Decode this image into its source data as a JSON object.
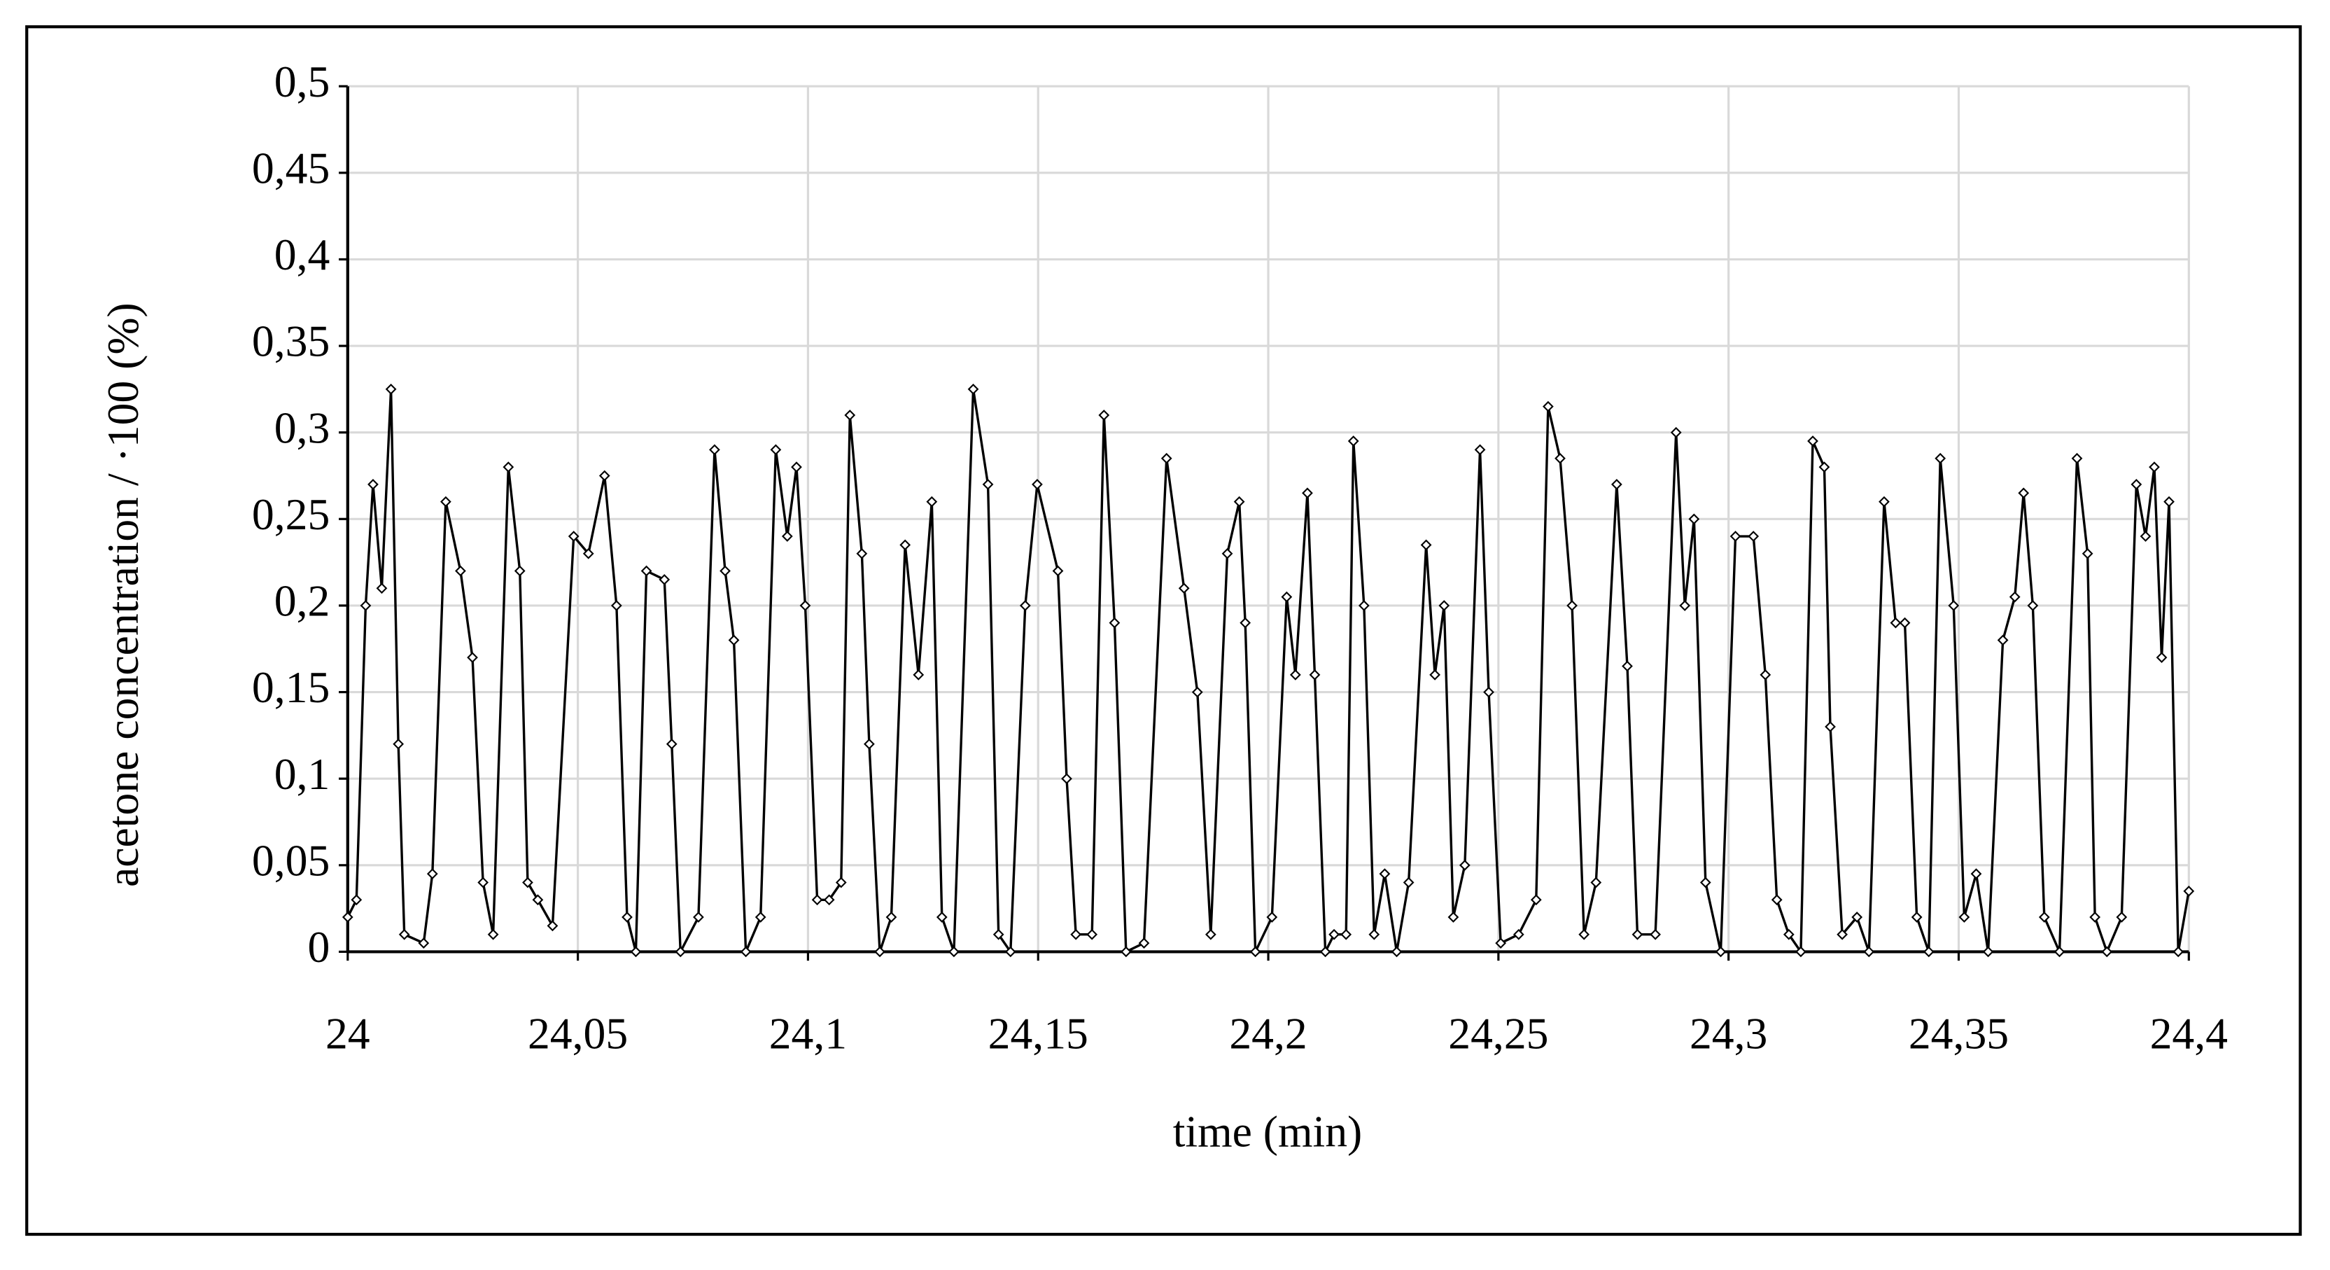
{
  "chart_data": {
    "type": "line",
    "xlabel": "time (min)",
    "ylabel": "acetone concentration / ·100 (%)",
    "xlim": [
      24,
      24.4
    ],
    "ylim": [
      0,
      0.5
    ],
    "xticks": [
      24,
      {
        "value": 24.05,
        "label": "24,05"
      },
      {
        "value": 24.1,
        "label": "24,1"
      },
      {
        "value": 24.15,
        "label": "24,15"
      },
      {
        "value": 24.2,
        "label": "24,2"
      },
      {
        "value": 24.25,
        "label": "24,25"
      },
      {
        "value": 24.3,
        "label": "24,3"
      },
      {
        "value": 24.35,
        "label": "24,35"
      },
      {
        "value": 24.4,
        "label": "24,4"
      }
    ],
    "yticks": [
      0,
      {
        "value": 0.05,
        "label": "0,05"
      },
      {
        "value": 0.1,
        "label": "0,1"
      },
      {
        "value": 0.15,
        "label": "0,15"
      },
      {
        "value": 0.2,
        "label": "0,2"
      },
      {
        "value": 0.25,
        "label": "0,25"
      },
      {
        "value": 0.3,
        "label": "0,3"
      },
      {
        "value": 0.35,
        "label": "0,35"
      },
      {
        "value": 0.4,
        "label": "0,4"
      },
      {
        "value": 0.45,
        "label": "0,45"
      },
      {
        "value": 0.5,
        "label": "0,5"
      }
    ],
    "grid": true,
    "color": "#000000",
    "x": [
      24,
      24.0019,
      24.0039,
      24.0055,
      24.0074,
      24.0094,
      24.011,
      24.0123,
      24.0165,
      24.0184,
      24.0213,
      24.0245,
      24.0271,
      24.0294,
      24.0316,
      24.0349,
      24.0374,
      24.0391,
      24.0413,
      24.0445,
      24.0491,
      24.0523,
      24.0558,
      24.0584,
      24.0607,
      24.0626,
      24.0649,
      24.0688,
      24.0704,
      24.0723,
      24.0762,
      24.0797,
      24.082,
      24.0839,
      24.0865,
      24.0897,
      24.093,
      24.0955,
      24.0975,
      24.0994,
      24.102,
      24.1046,
      24.1072,
      24.1091,
      24.1117,
      24.1133,
      24.1156,
      24.1181,
      24.1211,
      24.124,
      24.1269,
      24.1291,
      24.1317,
      24.1359,
      24.1391,
      24.1414,
      24.144,
      24.1472,
      24.1498,
      24.1543,
      24.1562,
      24.1582,
      24.1617,
      24.1643,
      24.1666,
      24.1691,
      24.173,
      24.1779,
      24.1817,
      24.1846,
      24.1875,
      24.1911,
      24.1937,
      24.195,
      24.1972,
      24.2008,
      24.204,
      24.2059,
      24.2085,
      24.2101,
      24.2124,
      24.2143,
      24.2169,
      24.2185,
      24.2208,
      24.223,
      24.2253,
      24.2279,
      24.2305,
      24.2343,
      24.2362,
      24.2382,
      24.2402,
      24.2427,
      24.246,
      24.2479,
      24.2505,
      24.2544,
      24.2582,
      24.2608,
      24.2634,
      24.266,
      24.2686,
      24.2712,
      24.2757,
      24.278,
      24.2802,
      24.2841,
      24.2886,
      24.2905,
      24.2925,
      24.295,
      24.2983,
      24.3015,
      24.3054,
      24.308,
      24.3105,
      24.3131,
      24.3157,
      24.3183,
      24.3208,
      24.3221,
      24.3247,
      24.3279,
      24.3305,
      24.3338,
      24.3363,
      24.3383,
      24.3409,
      24.3435,
      24.346,
      24.3489,
      24.3512,
      24.3538,
      24.3564,
      24.3596,
      24.3622,
      24.3641,
      24.3661,
      24.3686,
      24.3719,
      24.3757,
      24.378,
      24.3796,
      24.3822,
      24.3854,
      24.3886,
      24.3906,
      24.3925,
      24.3941,
      24.3957,
      24.3977,
      24.4
    ],
    "values": [
      0.02,
      0.03,
      0.2,
      0.27,
      0.21,
      0.325,
      0.12,
      0.01,
      0.005,
      0.045,
      0.26,
      0.22,
      0.17,
      0.04,
      0.01,
      0.28,
      0.22,
      0.04,
      0.03,
      0.015,
      0.24,
      0.23,
      0.275,
      0.2,
      0.02,
      0.0,
      0.22,
      0.215,
      0.12,
      0.0,
      0.02,
      0.29,
      0.22,
      0.18,
      0.0,
      0.02,
      0.29,
      0.24,
      0.28,
      0.2,
      0.03,
      0.03,
      0.04,
      0.31,
      0.23,
      0.12,
      0.0,
      0.02,
      0.235,
      0.16,
      0.26,
      0.02,
      0.0,
      0.325,
      0.27,
      0.01,
      0.0,
      0.2,
      0.27,
      0.22,
      0.1,
      0.01,
      0.01,
      0.31,
      0.19,
      0.0,
      0.005,
      0.285,
      0.21,
      0.15,
      0.01,
      0.23,
      0.26,
      0.19,
      0.0,
      0.02,
      0.205,
      0.16,
      0.265,
      0.16,
      0.0,
      0.01,
      0.01,
      0.295,
      0.2,
      0.01,
      0.045,
      0.0,
      0.04,
      0.235,
      0.16,
      0.2,
      0.02,
      0.05,
      0.29,
      0.15,
      0.005,
      0.01,
      0.03,
      0.315,
      0.285,
      0.2,
      0.01,
      0.04,
      0.27,
      0.165,
      0.01,
      0.01,
      0.3,
      0.2,
      0.25,
      0.04,
      0.0,
      0.24,
      0.24,
      0.16,
      0.03,
      0.01,
      0.0,
      0.295,
      0.28,
      0.13,
      0.01,
      0.02,
      0.0,
      0.26,
      0.19,
      0.19,
      0.02,
      0.0,
      0.285,
      0.2,
      0.02,
      0.045,
      0.0,
      0.18,
      0.205,
      0.265,
      0.2,
      0.02,
      0.0,
      0.285,
      0.23,
      0.02,
      0.0,
      0.02,
      0.27,
      0.24,
      0.28,
      0.17,
      0.26,
      0.0,
      0.035
    ]
  }
}
